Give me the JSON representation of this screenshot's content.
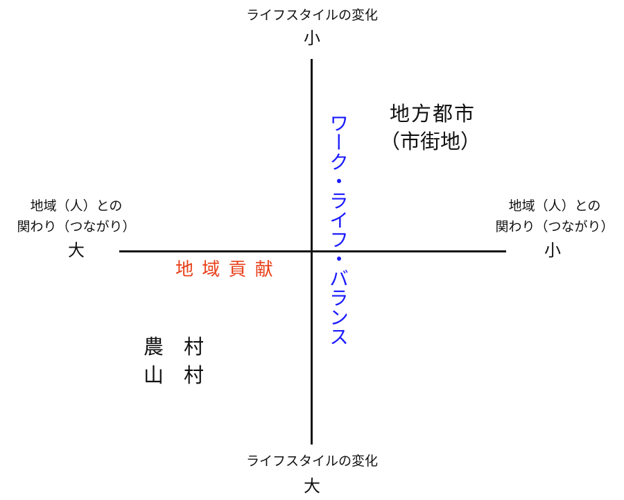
{
  "axes": {
    "top": {
      "label": "ライフスタイルの変化",
      "level": "小"
    },
    "bottom": {
      "label": "ライフスタイルの変化",
      "level": "大"
    },
    "left": {
      "label_line1": "地域（人）との",
      "label_line2": "関わり（つながり）",
      "level": "大"
    },
    "right": {
      "label_line1": "地域（人）との",
      "label_line2": "関わり（つながり）",
      "level": "小"
    }
  },
  "quadrants": {
    "upper_right": {
      "line1": "地方都市",
      "line2": "（市街地）"
    },
    "lower_left": {
      "line1": "農　村",
      "line2": "山　村"
    }
  },
  "annotations": {
    "vertical_axis_label": {
      "text": "ワーク・ライフ・バランス",
      "color": "#1a1aff"
    },
    "horizontal_axis_label": {
      "text": "地 域 貢 献",
      "color": "#e8401a"
    }
  }
}
